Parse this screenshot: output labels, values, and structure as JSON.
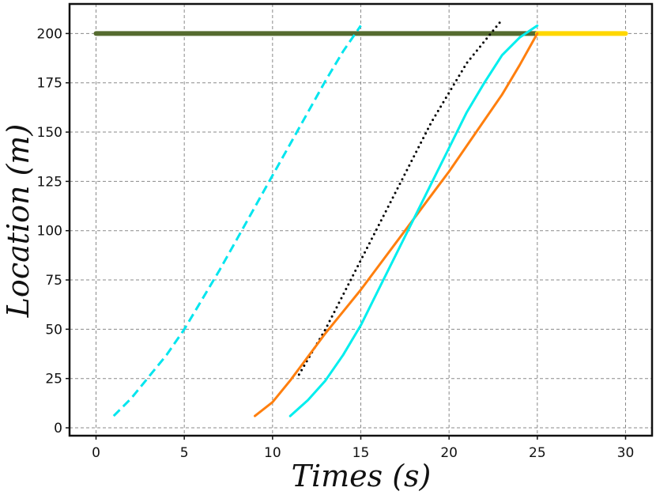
{
  "chart_data": {
    "type": "line",
    "xlabel": "Times (s)",
    "ylabel": "Location (m)",
    "xlim": [
      -1.5,
      31.5
    ],
    "ylim": [
      -4,
      215
    ],
    "xticks": [
      0,
      5,
      10,
      15,
      20,
      25,
      30
    ],
    "yticks": [
      0,
      25,
      50,
      75,
      100,
      125,
      150,
      175,
      200
    ],
    "grid": true,
    "series": [
      {
        "style": "solid",
        "color": "#556b2f",
        "points": [
          [
            0,
            200
          ],
          [
            25,
            200
          ]
        ]
      },
      {
        "style": "solid",
        "color": "#ffd700",
        "points": [
          [
            25,
            200
          ],
          [
            30,
            200
          ]
        ]
      },
      {
        "style": "dashed",
        "color": "#00e5ee",
        "points": [
          [
            1,
            6
          ],
          [
            2,
            15
          ],
          [
            3,
            26
          ],
          [
            4,
            37
          ],
          [
            5,
            50
          ],
          [
            6,
            65
          ],
          [
            7,
            80
          ],
          [
            8,
            96
          ],
          [
            9,
            112
          ],
          [
            10,
            128
          ],
          [
            11,
            144
          ],
          [
            12,
            160
          ],
          [
            13,
            176
          ],
          [
            14,
            191
          ],
          [
            15,
            204
          ]
        ]
      },
      {
        "style": "dotted",
        "color": "#000000",
        "points": [
          [
            11.5,
            27
          ],
          [
            13,
            50
          ],
          [
            15,
            85
          ],
          [
            17,
            120
          ],
          [
            19,
            155
          ],
          [
            21,
            185
          ],
          [
            23,
            207
          ]
        ]
      },
      {
        "style": "solid",
        "color": "#ff7f0e",
        "points": [
          [
            9,
            6
          ],
          [
            10,
            13
          ],
          [
            11,
            24
          ],
          [
            12,
            36
          ],
          [
            13,
            48
          ],
          [
            14,
            59
          ],
          [
            15,
            70
          ],
          [
            16,
            82
          ],
          [
            17,
            94
          ],
          [
            18,
            106
          ],
          [
            19,
            118
          ],
          [
            20,
            130
          ],
          [
            21,
            143
          ],
          [
            22,
            156
          ],
          [
            23,
            169
          ],
          [
            24,
            184
          ],
          [
            25,
            200
          ]
        ]
      },
      {
        "style": "solid",
        "color": "#00eeee",
        "points": [
          [
            11,
            6
          ],
          [
            12,
            14
          ],
          [
            13,
            24
          ],
          [
            14,
            37
          ],
          [
            15,
            52
          ],
          [
            16,
            70
          ],
          [
            17,
            88
          ],
          [
            18,
            106
          ],
          [
            19,
            124
          ],
          [
            20,
            142
          ],
          [
            21,
            160
          ],
          [
            22,
            175
          ],
          [
            23,
            189
          ],
          [
            24,
            198
          ],
          [
            25,
            204
          ]
        ]
      }
    ]
  }
}
